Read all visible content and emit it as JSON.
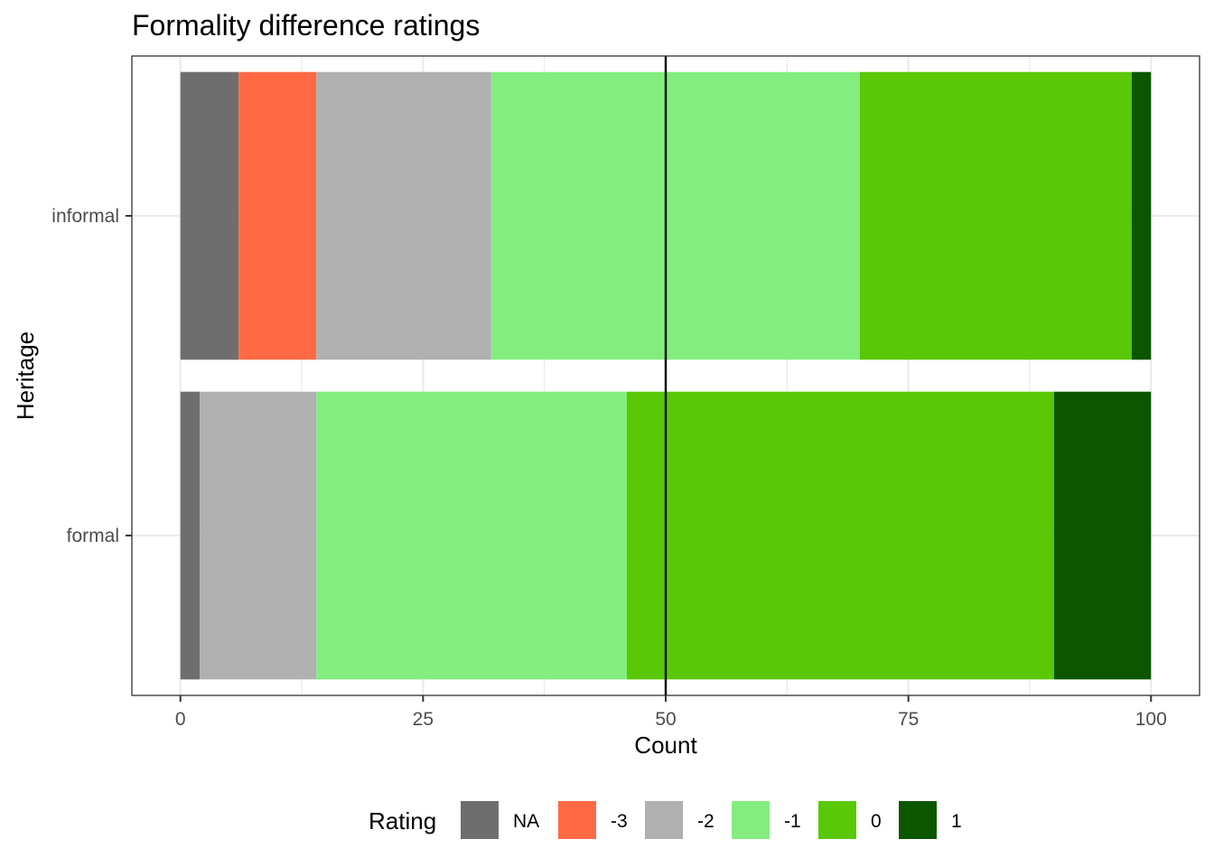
{
  "chart_data": {
    "type": "bar",
    "orientation": "horizontal",
    "stacked": true,
    "title": "Formality difference ratings",
    "xlabel": "Count",
    "ylabel": "Heritage",
    "xlim": [
      -5,
      105
    ],
    "x_ticks": [
      0,
      25,
      50,
      75,
      100
    ],
    "x_tick_labels": [
      "0",
      "25",
      "50",
      "75",
      "100"
    ],
    "reference_line": 50,
    "grid": true,
    "categories": [
      "informal",
      "formal"
    ],
    "legend": {
      "title": "Rating",
      "position": "bottom"
    },
    "series": [
      {
        "name": "NA",
        "color": "#6E6E6E",
        "values": [
          6,
          2
        ]
      },
      {
        "name": "-3",
        "color": "#FF6A45",
        "values": [
          8,
          0
        ]
      },
      {
        "name": "-2",
        "color": "#B0B0B0",
        "values": [
          18,
          12
        ]
      },
      {
        "name": "-1",
        "color": "#83ED80",
        "values": [
          38,
          32
        ]
      },
      {
        "name": "0",
        "color": "#5AC806",
        "values": [
          28,
          44
        ]
      },
      {
        "name": "1",
        "color": "#0C5600",
        "values": [
          2,
          10
        ]
      }
    ]
  }
}
